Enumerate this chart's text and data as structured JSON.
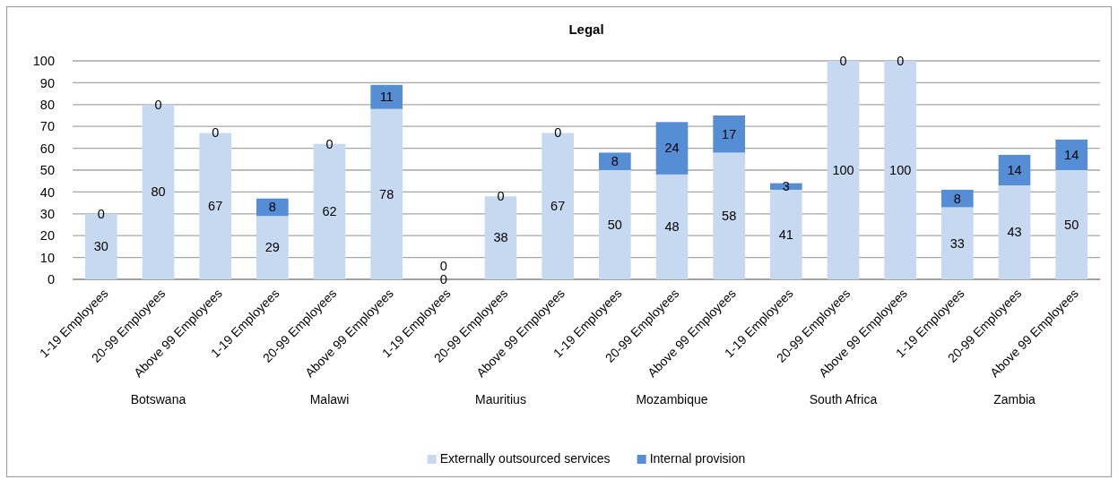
{
  "chart_data": {
    "type": "bar",
    "title": "Legal",
    "stacked": true,
    "categories": [
      "1-19 Employees",
      "20-99 Employees",
      "Above 99 Employees",
      "1-19 Employees",
      "20-99 Employees",
      "Above 99 Employees",
      "1-19 Employees",
      "20-99 Employees",
      "Above 99 Employees",
      "1-19 Employees",
      "20-99 Employees",
      "Above 99 Employees",
      "1-19 Employees",
      "20-99 Employees",
      "Above 99 Employees",
      "1-19 Employees",
      "20-99 Employees",
      "Above 99 Employees"
    ],
    "series": [
      {
        "name": "Externally outsourced services",
        "color": "#c6d9f1",
        "values": [
          30,
          80,
          67,
          29,
          62,
          78,
          0,
          38,
          67,
          50,
          48,
          58,
          41,
          100,
          100,
          33,
          43,
          50
        ]
      },
      {
        "name": "Internal provision",
        "color": "#558ed5",
        "values": [
          0,
          0,
          0,
          8,
          0,
          11,
          0,
          0,
          0,
          8,
          24,
          17,
          3,
          0,
          0,
          8,
          14,
          14
        ]
      }
    ],
    "ylim": [
      0,
      100
    ],
    "yticks": [
      0,
      10,
      20,
      30,
      40,
      50,
      60,
      70,
      80,
      90,
      100
    ],
    "grid": "y",
    "legend": "bottom",
    "data_labels": true,
    "annotations": [
      "Botswana",
      "Malawi",
      "Mauritius",
      "Mozambique",
      "South Africa",
      "Zambia"
    ]
  }
}
